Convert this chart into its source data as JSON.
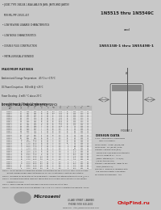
{
  "title_part1": "1N5515 thru 1N5549C",
  "title_and": "and",
  "title_part2": "1N5515B-1 thru 1N5549B-1",
  "features": [
    "JEDEC TYPE 1N5248-1 AVAILABLE IN JANS, JANTX AND JANTXV",
    "PER MIL-PRF-19500-437",
    "LOW REVERSE LEAKAGE CHARACTERISTICS",
    "LOW NOISE CHARACTERISTICS",
    "DOUBLE PLUG CONSTRUCTION",
    "METALLURGICALLY BONDED"
  ],
  "feature_bullets": [
    true,
    false,
    true,
    true,
    true,
    true
  ],
  "max_ratings_title": "MAXIMUM RATINGS",
  "max_ratings": [
    "Ambient and Storage Temperature:  -65°C to +175°C",
    "DC Power Dissipation:  500 mW @ +25°C",
    "Power Derating:  4 mW / °C above 25°C",
    "Forward Voltage @ 200mA:  1.1 volts maximum"
  ],
  "table_title": "DC ELECTRICAL CHARACTERISTICS (25°C)",
  "col_headers": [
    "JEDEC\nType\nNumber",
    "Nominal\nZener\nVoltage\nVZ(V)",
    "JEDEC\nMin\nVZ\n(V)",
    "JEDEC\nMax\nVZ\n(V)",
    "ZZT\nΩ",
    "ZZK\nΩ",
    "ZZA\nΩ",
    "IZT\nmA",
    "IR\nμA",
    "VR\nV",
    "Iz\nmA",
    "Max\nmA"
  ],
  "table_rows": [
    [
      "1N5515",
      "2.4",
      "2.28",
      "2.52",
      "30",
      "0.5",
      "100",
      "1500",
      "20",
      "0.15",
      "0.10",
      "1.0"
    ],
    [
      "1N5516",
      "2.7",
      "2.57",
      "2.84",
      "30",
      "0.5",
      "100",
      "1500",
      "20",
      "0.15",
      "0.10",
      "1.0"
    ],
    [
      "1N5517",
      "3.0",
      "2.85",
      "3.15",
      "29",
      "0.5",
      "95",
      "1500",
      "20",
      "0.15",
      "0.10",
      "1.0"
    ],
    [
      "1N5518",
      "3.3",
      "3.14",
      "3.47",
      "28",
      "0.5",
      "95",
      "1500",
      "20",
      "0.15",
      "0.10",
      "1.0"
    ],
    [
      "1N5519",
      "3.6",
      "3.42",
      "3.78",
      "24",
      "0.5",
      "90",
      "1500",
      "20",
      "0.15",
      "0.10",
      "1.0"
    ],
    [
      "1N5520",
      "3.9",
      "3.71",
      "4.10",
      "23",
      "0.5",
      "90",
      "1400",
      "20",
      "0.15",
      "0.10",
      "1.0"
    ],
    [
      "1N5521",
      "4.3",
      "4.09",
      "4.52",
      "22",
      "0.5",
      "90",
      "1300",
      "20",
      "0.15",
      "0.10",
      "1.0"
    ],
    [
      "1N5522",
      "4.7",
      "4.47",
      "4.94",
      "19",
      "0.5",
      "85",
      "1200",
      "20",
      "0.15",
      "0.10",
      "1.0"
    ],
    [
      "1N5523",
      "5.1",
      "4.85",
      "5.36",
      "17",
      "0.5",
      "80",
      "1100",
      "10",
      "0.15",
      "0.05",
      "1.0"
    ],
    [
      "1N5524",
      "5.6",
      "5.32",
      "5.88",
      "11",
      "0.5",
      "80",
      "1000",
      "10",
      "1.0",
      "0.05",
      "1.0"
    ],
    [
      "1N5525",
      "6.0",
      "5.70",
      "6.30",
      "7",
      "0.5",
      "80",
      "900",
      "10",
      "2.0",
      "0.05",
      "1.0"
    ],
    [
      "1N5526",
      "6.2",
      "5.89",
      "6.51",
      "7",
      "0.5",
      "80",
      "900",
      "10",
      "2.0",
      "0.05",
      "1.0"
    ],
    [
      "1N5527",
      "6.8",
      "6.46",
      "7.14",
      "5",
      "0.5",
      "80",
      "700",
      "10",
      "3.0",
      "0.05",
      "1.0"
    ],
    [
      "1N5528",
      "7.5",
      "7.13",
      "7.88",
      "6",
      "0.5",
      "80",
      "700",
      "10",
      "3.5",
      "0.05",
      "1.0"
    ],
    [
      "1N5529",
      "8.2",
      "7.79",
      "8.61",
      "8",
      "0.5",
      "80",
      "600",
      "10",
      "4.0",
      "0.05",
      "1.0"
    ],
    [
      "1N5530",
      "8.7",
      "8.27",
      "9.14",
      "8",
      "0.5",
      "75",
      "600",
      "10",
      "4.5",
      "0.05",
      "1.0"
    ],
    [
      "1N5531",
      "9.1",
      "8.65",
      "9.56",
      "10",
      "0.5",
      "75",
      "600",
      "10",
      "5.0",
      "0.05",
      "1.0"
    ],
    [
      "1N5532",
      "10",
      "9.50",
      "10.50",
      "17",
      "0.5",
      "75",
      "500",
      "10",
      "6.0",
      "0.05",
      "1.0"
    ],
    [
      "1N5533",
      "11",
      "10.45",
      "11.55",
      "22",
      "0.5",
      "75",
      "500",
      "10",
      "6.5",
      "0.05",
      "1.0"
    ],
    [
      "1N5534",
      "12",
      "11.40",
      "12.60",
      "30",
      "0.5",
      "75",
      "400",
      "10",
      "7.0",
      "0.05",
      "1.0"
    ],
    [
      "1N5535",
      "13",
      "12.35",
      "13.65",
      "33",
      "0.5",
      "75",
      "400",
      "5",
      "7.5",
      "0.02",
      "0.5"
    ],
    [
      "1N5536",
      "15",
      "14.25",
      "15.75",
      "41",
      "0.5",
      "75",
      "300",
      "5",
      "8.5",
      "0.02",
      "0.5"
    ],
    [
      "1N5537",
      "16",
      "15.20",
      "16.80",
      "47",
      "0.5",
      "75",
      "300",
      "5",
      "9.0",
      "0.02",
      "0.5"
    ],
    [
      "1N5538",
      "18",
      "17.10",
      "18.90",
      "56",
      "0.5",
      "75",
      "300",
      "5",
      "10.0",
      "0.02",
      "0.5"
    ],
    [
      "1N5539",
      "20",
      "19.00",
      "21.00",
      "65",
      "0.5",
      "75",
      "250",
      "5",
      "11.0",
      "0.02",
      "0.5"
    ],
    [
      "1N5540",
      "22",
      "20.90",
      "23.10",
      "79",
      "0.5",
      "75",
      "250",
      "5",
      "12.5",
      "0.02",
      "0.5"
    ],
    [
      "1N5541",
      "24",
      "22.80",
      "25.20",
      "95",
      "0.5",
      "75",
      "250",
      "5",
      "14.0",
      "0.02",
      "0.5"
    ],
    [
      "1N5542",
      "27",
      "25.65",
      "28.35",
      "110",
      "0.5",
      "75",
      "250",
      "5",
      "15.5",
      "0.02",
      "0.5"
    ],
    [
      "1N5543",
      "30",
      "28.50",
      "31.50",
      "135",
      "0.5",
      "75",
      "250",
      "5",
      "17.5",
      "0.02",
      "0.5"
    ],
    [
      "1N5544",
      "33",
      "31.35",
      "34.65",
      "155",
      "0.5",
      "75",
      "200",
      "5",
      "19.5",
      "0.02",
      "0.5"
    ],
    [
      "1N5545",
      "36",
      "34.20",
      "37.80",
      "175",
      "0.5",
      "75",
      "200",
      "5",
      "21.0",
      "0.02",
      "0.5"
    ],
    [
      "1N5546",
      "39",
      "37.05",
      "40.95",
      "200",
      "0.5",
      "75",
      "200",
      "5",
      "23.0",
      "0.02",
      "0.5"
    ],
    [
      "1N5547",
      "43",
      "40.85",
      "45.15",
      "250",
      "0.5",
      "75",
      "200",
      "5",
      "26.0",
      "0.02",
      "0.5"
    ],
    [
      "1N5548",
      "47",
      "44.65",
      "49.35",
      "300",
      "0.5",
      "75",
      "200",
      "5",
      "28.0",
      "0.02",
      "0.5"
    ],
    [
      "1N5549",
      "51",
      "48.45",
      "53.55",
      "350",
      "0.5",
      "75",
      "200",
      "5",
      "30.0",
      "0.02",
      "0.5"
    ]
  ],
  "notes": [
    "NOTE 1   Do not use zener voltages and currents from this table for any V-I curve or other design purpose",
    "         without considering applicable test tolerances, nor for current flows of less than 20% of test Iz.",
    "NOTE 2   Microsemi, by designation of the diode polarity, considers the cathode as the positive end @ 25°C.",
    "NOTE 3   Microsemi temperature coefficient specification on all vendors not a restriction on an individual",
    "         manufacturers d.o.e.",
    "NOTE 4   Reverse leakage currents are measured using Vr as shown in this table.",
    "NOTE 5   For the maximum difference between +25°C and +75°C and V-I characteristics used with JANTXV"
  ],
  "design_data_title": "DESIGN DATA",
  "design_data_lines": [
    "CASE:  Hermetically sealed glass",
    "       body ± 15 grams.",
    "LEAD FINISH:  Solder (60/40) dip",
    "LEAD WIRE:  7% (by wt.) lead",
    "THERMAL RESISTANCE (θj-a):",
    "  Typical 300°C/W when mounted with",
    "  TYPICAL leads at d = +1 in",
    "  (JEDEC standard) d = +1.5(W)",
    "  (12.5% typical of a)",
    "THERMAL IMPEDANCE:  Refer to MIL",
    "  STDS (typical of a)",
    "POLARITY:  Band in accordance with",
    "  the General industry convention",
    "MAXIMUM DIMENSIONS:  Any"
  ],
  "microsemi_text": "Microsemi",
  "address": "4 LAKE STREET, LAWREN",
  "phone": "PHONE (978) 620-2600",
  "website": "WEBSITE:  http://www.microsemi.com",
  "chipfind": "ChipFind.ru",
  "figure1_label": "FIGURE 1",
  "bg_page": "#c8c8c8",
  "bg_top_left": "#d4d4d4",
  "bg_top_right": "#d8d8d8",
  "bg_ratings": "#e0e0e0",
  "bg_table": "#e8e8e8",
  "bg_diagram": "#e4e4e4",
  "bg_design": "#dcdcdc",
  "bg_notes": "#d4d4d4",
  "bg_footer": "#f0f0f0",
  "text_color": "#222222",
  "hdr_bg": "#b8b8b8",
  "row_even": "#ececec",
  "row_odd": "#e0e0e0"
}
